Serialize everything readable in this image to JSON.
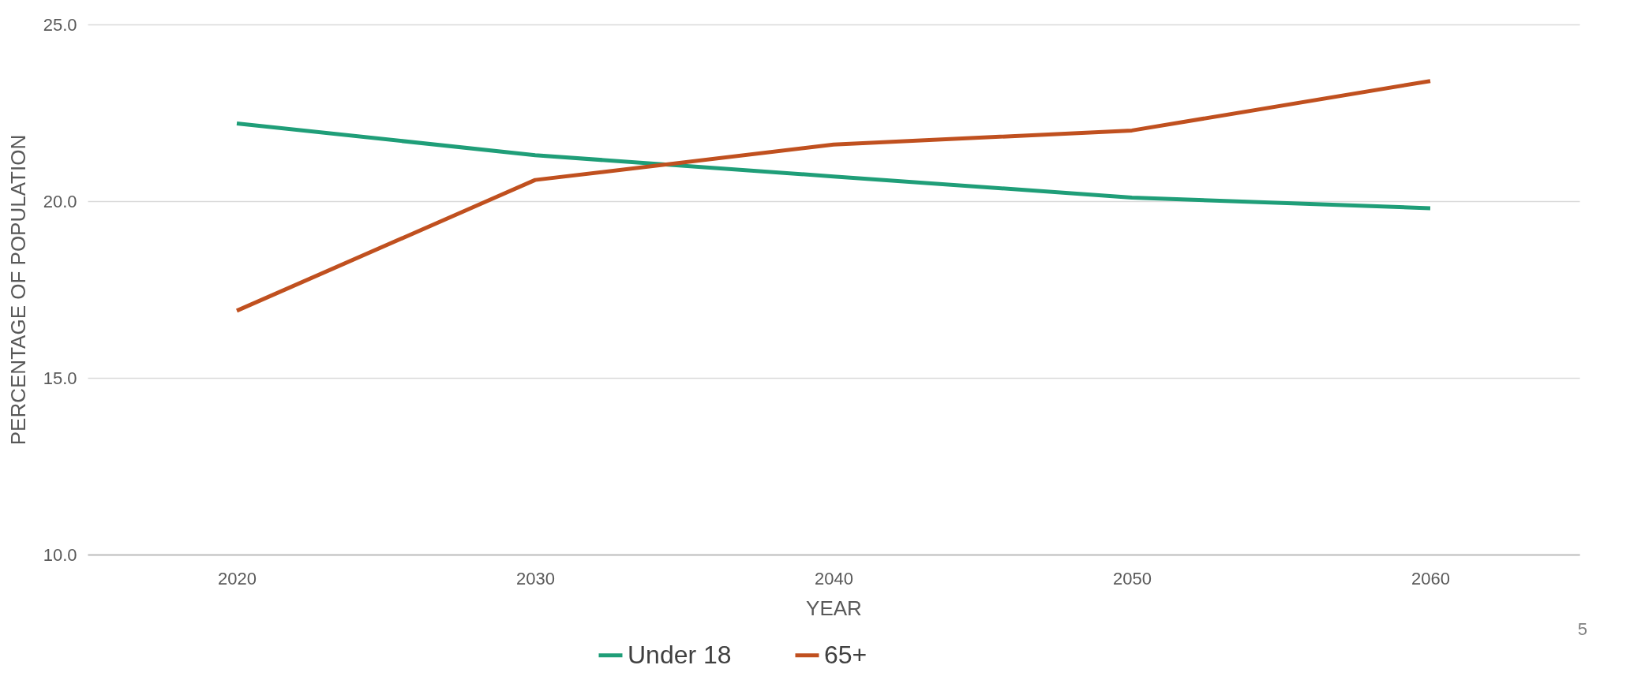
{
  "chart_data": {
    "type": "line",
    "xlabel": "YEAR",
    "ylabel": "PERCENTAGE OF POPULATION",
    "categories": [
      "2020",
      "2030",
      "2040",
      "2050",
      "2060"
    ],
    "series": [
      {
        "name": "Under 18",
        "color": "#1f9e78",
        "values": [
          22.2,
          21.3,
          20.7,
          20.1,
          19.8
        ]
      },
      {
        "name": "65+",
        "color": "#c0501f",
        "values": [
          16.9,
          20.6,
          21.6,
          22.0,
          23.4
        ]
      }
    ],
    "ylim": [
      10,
      25
    ],
    "yticks": [
      {
        "value": 10,
        "label": "10.0"
      },
      {
        "value": 15,
        "label": "15.0"
      },
      {
        "value": 20,
        "label": "20.0"
      },
      {
        "value": 25,
        "label": "25.0"
      }
    ],
    "grid": "y",
    "legend": "bottom",
    "line_style": "solid",
    "marker": "none",
    "annotations": [
      "5"
    ]
  }
}
